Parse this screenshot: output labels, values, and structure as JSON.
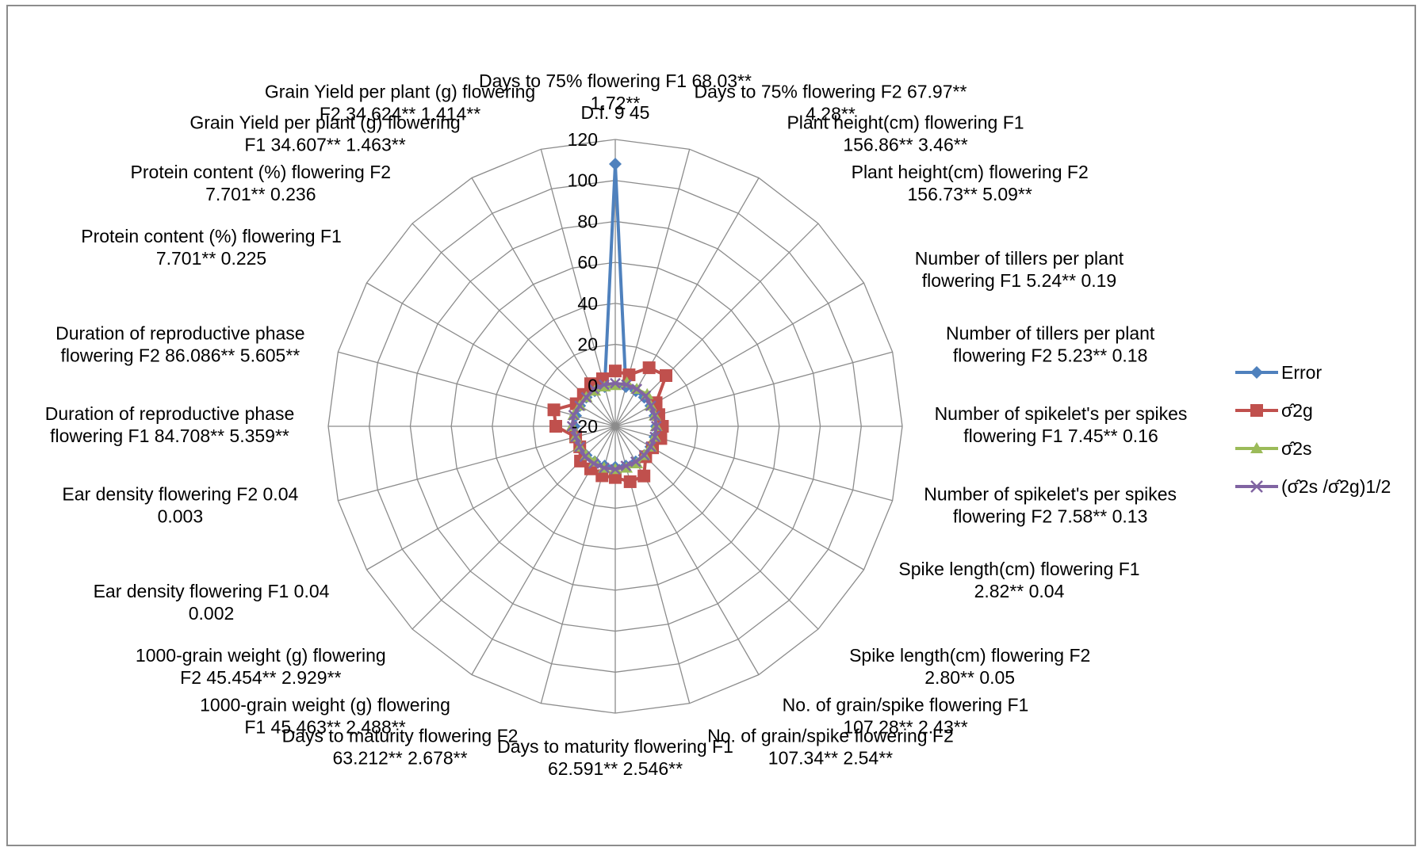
{
  "chart_data": {
    "type": "radar",
    "header_text": "D.f.   9 45",
    "axis": {
      "min": -20,
      "max": 120,
      "ticks": [
        -20,
        0,
        20,
        40,
        60,
        80,
        100,
        120
      ]
    },
    "categories": [
      [
        "Days to 75% flowering F1 68.03**",
        "1.72**"
      ],
      [
        "Days to 75% flowering F2 67.97**",
        "4.28**"
      ],
      [
        "Plant height(cm) flowering F1",
        "156.86** 3.46**"
      ],
      [
        "Plant height(cm) flowering F2",
        "156.73** 5.09**"
      ],
      [
        "Number of  tillers per plant",
        "flowering F1 5.24** 0.19"
      ],
      [
        "Number of  tillers per plant",
        "flowering F2 5.23** 0.18"
      ],
      [
        "Number of spikelet's per spikes",
        "flowering F1 7.45** 0.16"
      ],
      [
        "Number of spikelet's per spikes",
        "flowering F2 7.58** 0.13"
      ],
      [
        "Spike length(cm) flowering F1",
        "2.82** 0.04"
      ],
      [
        "Spike length(cm) flowering F2",
        "2.80** 0.05"
      ],
      [
        "No. of grain/spike flowering F1",
        "107.28** 2.43**"
      ],
      [
        "No. of grain/spike flowering F2",
        "107.34** 2.54**"
      ],
      [
        "Days to maturity flowering F1",
        "62.591** 2.546**"
      ],
      [
        "Days to maturity flowering F2",
        "63.212** 2.678**"
      ],
      [
        "1000-grain weight (g) flowering",
        "F1 45.463** 2.488**"
      ],
      [
        "1000-grain weight (g) flowering",
        "F2 45.454** 2.929**"
      ],
      [
        "Ear density flowering F1 0.04",
        "0.002"
      ],
      [
        "Ear density flowering F2 0.04",
        "0.003"
      ],
      [
        "Duration of reproductive phase",
        "flowering F1 84.708** 5.359**"
      ],
      [
        "Duration of reproductive phase",
        "flowering F2 86.086** 5.605**"
      ],
      [
        "Protein content (%) flowering F1",
        "7.701** 0.225"
      ],
      [
        "Protein content (%) flowering F2",
        "7.701** 0.236"
      ],
      [
        "Grain Yield per plant (g) flowering",
        "F1 34.607** 1.463**"
      ],
      [
        "Grain Yield per plant (g) flowering",
        "F2 34.624** 1.414**"
      ]
    ],
    "series": [
      {
        "name": "Error",
        "color": "#4f81bd",
        "marker": "diamond",
        "values": [
          108,
          0,
          0,
          0,
          0,
          0,
          0,
          0,
          0,
          0,
          0,
          0,
          0,
          0,
          0,
          0,
          0,
          0,
          0,
          0,
          0,
          0,
          0,
          0
        ]
      },
      {
        "name": "σ̂2g",
        "color": "#c0504d",
        "marker": "square",
        "values": [
          7,
          6,
          13,
          15,
          3,
          2,
          3,
          3,
          1,
          1,
          8,
          8,
          5,
          5,
          4,
          4,
          0,
          0,
          9,
          11,
          2,
          2,
          4,
          4
        ]
      },
      {
        "name": "σ̂2s",
        "color": "#9bbb59",
        "marker": "triangle",
        "values": [
          0,
          2,
          1,
          2,
          0,
          0,
          0,
          0,
          0,
          0,
          1,
          1,
          1,
          1,
          0,
          0,
          0,
          0,
          1,
          1,
          0,
          0,
          0,
          0
        ]
      },
      {
        "name": "(σ̂2s /σ̂2g)1/2",
        "color": "#8064a2",
        "marker": "x",
        "values": [
          1,
          1,
          1,
          1,
          0,
          0,
          0,
          0,
          0,
          0,
          0,
          0,
          1,
          1,
          1,
          1,
          0,
          0,
          1,
          1,
          0,
          0,
          1,
          1
        ]
      }
    ]
  }
}
